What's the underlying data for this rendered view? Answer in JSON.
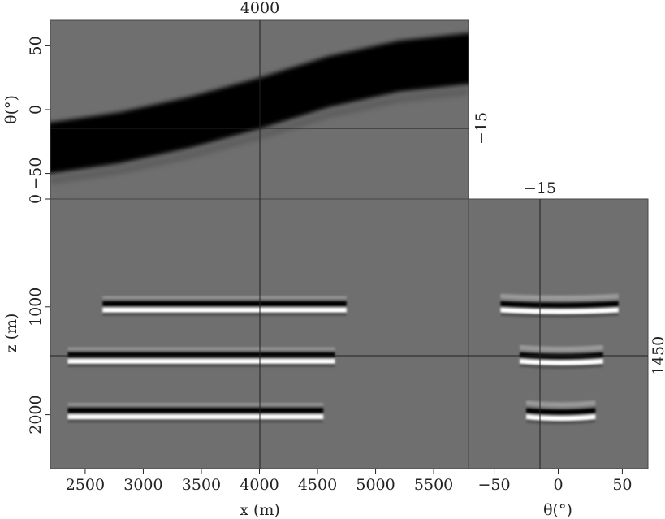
{
  "chart_data": {
    "type": "heatmap",
    "colormap": "grayscale",
    "colors": {
      "background": "#6f6f6f",
      "negative": "#000000",
      "positive": "#ffffff",
      "crosshair": "#222222"
    },
    "panels": {
      "top": {
        "name": "theta-x slice",
        "xlim": [
          2200,
          5800
        ],
        "ylim": [
          -70,
          70
        ],
        "ylabel": "θ(°)",
        "yticks": [
          50,
          0,
          -50
        ],
        "ytick_labels": [
          "50",
          "0",
          "−50"
        ],
        "band_center": {
          "x": [
            2200,
            2800,
            3400,
            4000,
            4600,
            5200,
            5800
          ],
          "theta": [
            -30,
            -22,
            -10,
            5,
            22,
            34,
            40
          ]
        },
        "band_halfwidth": 20
      },
      "main": {
        "name": "z-x slice",
        "xlim": [
          2200,
          5800
        ],
        "ylim": [
          0,
          2500
        ],
        "xlabel": "x (m)",
        "ylabel": "z (m)",
        "xticks": [
          2500,
          3000,
          3500,
          4000,
          4500,
          5000,
          5500
        ],
        "xtick_labels": [
          "2500",
          "3000",
          "3500",
          "4000",
          "4500",
          "5000",
          "5500"
        ],
        "yticks": [
          0,
          1000,
          2000
        ],
        "ytick_labels": [
          "0",
          "1000",
          "2000"
        ],
        "reflectors": [
          {
            "z": 985,
            "x": [
              2650,
              4750
            ]
          },
          {
            "z": 1460,
            "x": [
              2350,
              4650
            ]
          },
          {
            "z": 1975,
            "x": [
              2350,
              4550
            ]
          }
        ]
      },
      "right": {
        "name": "z-theta slice",
        "xlim": [
          -70,
          70
        ],
        "xlabel": "θ(°)",
        "xticks": [
          -50,
          0,
          50
        ],
        "xtick_labels": [
          "−50",
          "0",
          "50"
        ],
        "reflectors": [
          {
            "z": 985,
            "theta": [
              -45,
              47
            ]
          },
          {
            "z": 1460,
            "theta": [
              -30,
              35
            ]
          },
          {
            "z": 1975,
            "theta": [
              -25,
              29
            ]
          }
        ]
      }
    },
    "crosshair": {
      "x": 4000,
      "theta": -15,
      "z": 1450,
      "x_label": "4000",
      "theta_label_top": "−15",
      "theta_label_side": "−15",
      "z_label": "1450"
    }
  }
}
